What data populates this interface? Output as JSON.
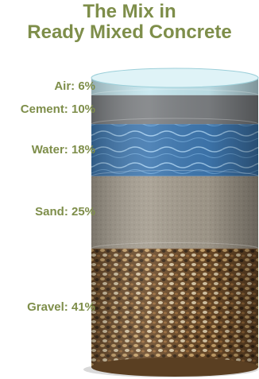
{
  "title": {
    "line1": "The Mix in",
    "line2": "Ready Mixed Concrete"
  },
  "layers": [
    {
      "key": "air",
      "label": "Air: 6%",
      "percent": 6,
      "color": "#bfe3ea"
    },
    {
      "key": "cement",
      "label": "Cement: 10%",
      "percent": 10,
      "color": "#8a8d8f"
    },
    {
      "key": "water",
      "label": "Water: 18%",
      "percent": 18,
      "color": "#4f86b9"
    },
    {
      "key": "sand",
      "label": "Sand: 25%",
      "percent": 25,
      "color": "#a29a8c"
    },
    {
      "key": "gravel",
      "label": "Gravel: 41%",
      "percent": 41,
      "color": "#7a5a35"
    }
  ]
}
